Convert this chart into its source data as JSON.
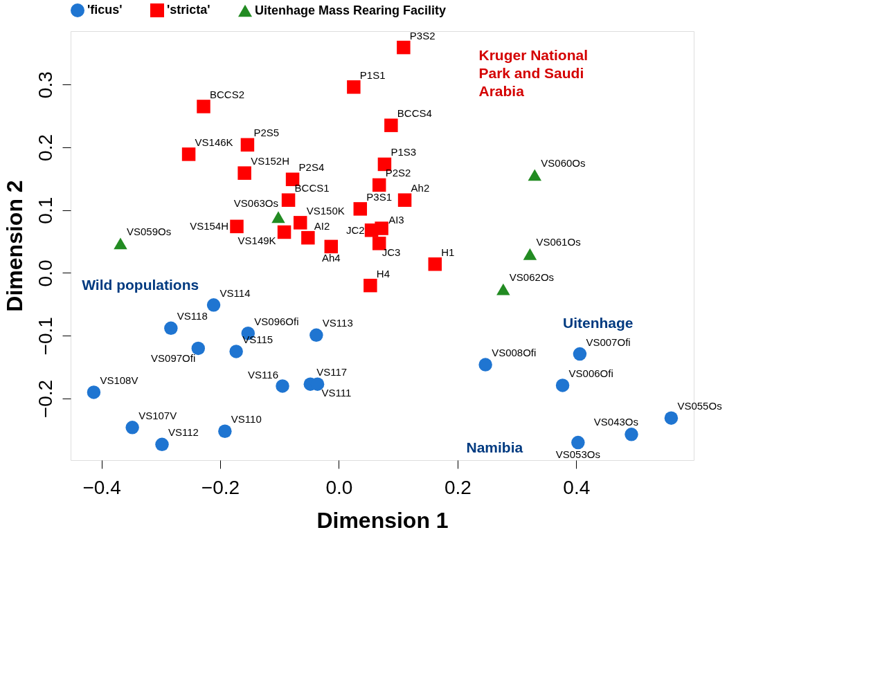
{
  "chart_data": {
    "type": "scatter",
    "xlabel": "Dimension 1",
    "ylabel": "Dimension 2",
    "xlim": [
      -0.452,
      0.598
    ],
    "ylim": [
      -0.298,
      0.385
    ],
    "xticks": [
      -0.4,
      -0.2,
      {
        "value": 0,
        "label": "0.0"
      },
      0.2,
      0.4
    ],
    "yticks": [
      -0.2,
      -0.1,
      {
        "value": 0,
        "label": "0.0"
      },
      0.1,
      0.2,
      0.3
    ],
    "grid": false,
    "legend": "top",
    "series": [
      {
        "name": "'ficus'",
        "color": "#1f75d1",
        "marker": "circle",
        "x": [
          -0.211,
          -0.283,
          -0.153,
          -0.038,
          -0.237,
          -0.173,
          -0.413,
          -0.095,
          -0.048,
          -0.036,
          -0.348,
          -0.192,
          -0.298,
          0.247,
          0.406,
          0.377,
          0.56,
          0.493,
          0.403
        ],
        "values": [
          -0.051,
          -0.088,
          -0.096,
          -0.099,
          -0.12,
          -0.125,
          -0.19,
          -0.18,
          -0.177,
          -0.177,
          -0.246,
          -0.252,
          -0.273,
          -0.146,
          -0.129,
          -0.179,
          -0.231,
          -0.257,
          -0.27
        ]
      },
      {
        "name": "'stricta'",
        "color": "#ff0000",
        "marker": "square",
        "x": [
          0.109,
          0.025,
          -0.228,
          0.088,
          -0.154,
          -0.253,
          0.077,
          -0.159,
          -0.078,
          0.068,
          0.111,
          -0.085,
          0.036,
          -0.065,
          -0.172,
          -0.092,
          0.055,
          0.072,
          -0.052,
          0.068,
          -0.013,
          0.162,
          0.053
        ],
        "values": [
          0.359,
          0.296,
          0.265,
          0.235,
          0.204,
          0.189,
          0.173,
          0.159,
          0.149,
          0.14,
          0.116,
          0.116,
          0.102,
          0.08,
          0.074,
          0.065,
          0.068,
          0.071,
          0.056,
          0.047,
          0.042,
          0.014,
          -0.02
        ]
      },
      {
        "name": "Uitenhage Mass Rearing Facility",
        "color": "#228b22",
        "marker": "triangle",
        "x": [
          -0.102,
          -0.368,
          0.33,
          0.322,
          0.277
        ],
        "values": [
          0.089,
          0.047,
          0.156,
          0.03,
          -0.026
        ]
      }
    ],
    "annotations": [
      {
        "text": "VS114",
        "x": -0.211,
        "y": -0.051
      },
      {
        "text": "VS118",
        "x": -0.283,
        "y": -0.088
      },
      {
        "text": "VS096Ofi",
        "x": -0.153,
        "y": -0.096
      },
      {
        "text": "VS113",
        "x": -0.038,
        "y": -0.099
      },
      {
        "text": "VS097Ofi",
        "x": -0.237,
        "y": -0.12
      },
      {
        "text": "VS115",
        "x": -0.173,
        "y": -0.125
      },
      {
        "text": "VS108V",
        "x": -0.413,
        "y": -0.19
      },
      {
        "text": "VS116",
        "x": -0.095,
        "y": -0.18
      },
      {
        "text": "VS117",
        "x": -0.048,
        "y": -0.177
      },
      {
        "text": "VS111",
        "x": -0.036,
        "y": -0.177
      },
      {
        "text": "VS107V",
        "x": -0.348,
        "y": -0.246
      },
      {
        "text": "VS110",
        "x": -0.192,
        "y": -0.252
      },
      {
        "text": "VS112",
        "x": -0.298,
        "y": -0.273
      },
      {
        "text": "VS008Ofi",
        "x": 0.247,
        "y": -0.146
      },
      {
        "text": "VS007Ofi",
        "x": 0.406,
        "y": -0.129
      },
      {
        "text": "VS006Ofi",
        "x": 0.377,
        "y": -0.179
      },
      {
        "text": "VS055Os",
        "x": 0.56,
        "y": -0.231
      },
      {
        "text": "VS043Os",
        "x": 0.493,
        "y": -0.257
      },
      {
        "text": "VS053Os",
        "x": 0.403,
        "y": -0.27
      },
      {
        "text": "P3S2",
        "x": 0.109,
        "y": 0.359
      },
      {
        "text": "P1S1",
        "x": 0.025,
        "y": 0.296
      },
      {
        "text": "BCCS2",
        "x": -0.228,
        "y": 0.265
      },
      {
        "text": "BCCS4",
        "x": 0.088,
        "y": 0.235
      },
      {
        "text": "P2S5",
        "x": -0.154,
        "y": 0.204
      },
      {
        "text": "VS146K",
        "x": -0.253,
        "y": 0.189
      },
      {
        "text": "P1S3",
        "x": 0.077,
        "y": 0.173
      },
      {
        "text": "VS152H",
        "x": -0.159,
        "y": 0.159
      },
      {
        "text": "P2S4",
        "x": -0.078,
        "y": 0.149
      },
      {
        "text": "P2S2",
        "x": 0.068,
        "y": 0.14
      },
      {
        "text": "Ah2",
        "x": 0.111,
        "y": 0.116
      },
      {
        "text": "BCCS1",
        "x": -0.085,
        "y": 0.116
      },
      {
        "text": "P3S1",
        "x": 0.036,
        "y": 0.102
      },
      {
        "text": "VS150K",
        "x": -0.065,
        "y": 0.08
      },
      {
        "text": "VS154H",
        "x": -0.172,
        "y": 0.074
      },
      {
        "text": "VS149K",
        "x": -0.092,
        "y": 0.065
      },
      {
        "text": "JC2",
        "x": 0.055,
        "y": 0.068
      },
      {
        "text": "AI3",
        "x": 0.072,
        "y": 0.071
      },
      {
        "text": "AI2",
        "x": -0.052,
        "y": 0.056
      },
      {
        "text": "JC3",
        "x": 0.068,
        "y": 0.047
      },
      {
        "text": "Ah4",
        "x": -0.013,
        "y": 0.042
      },
      {
        "text": "H1",
        "x": 0.162,
        "y": 0.014
      },
      {
        "text": "H4",
        "x": 0.053,
        "y": -0.02
      },
      {
        "text": "VS063Os",
        "x": -0.102,
        "y": 0.089
      },
      {
        "text": "VS059Os",
        "x": -0.368,
        "y": 0.047
      },
      {
        "text": "VS060Os",
        "x": 0.33,
        "y": 0.156
      },
      {
        "text": "VS061Os",
        "x": 0.322,
        "y": 0.03
      },
      {
        "text": "VS062Os",
        "x": 0.277,
        "y": -0.026
      },
      "Kruger National Park and Saudi Arabia",
      "Wild populations",
      "Uitenhage",
      "Namibia"
    ]
  }
}
